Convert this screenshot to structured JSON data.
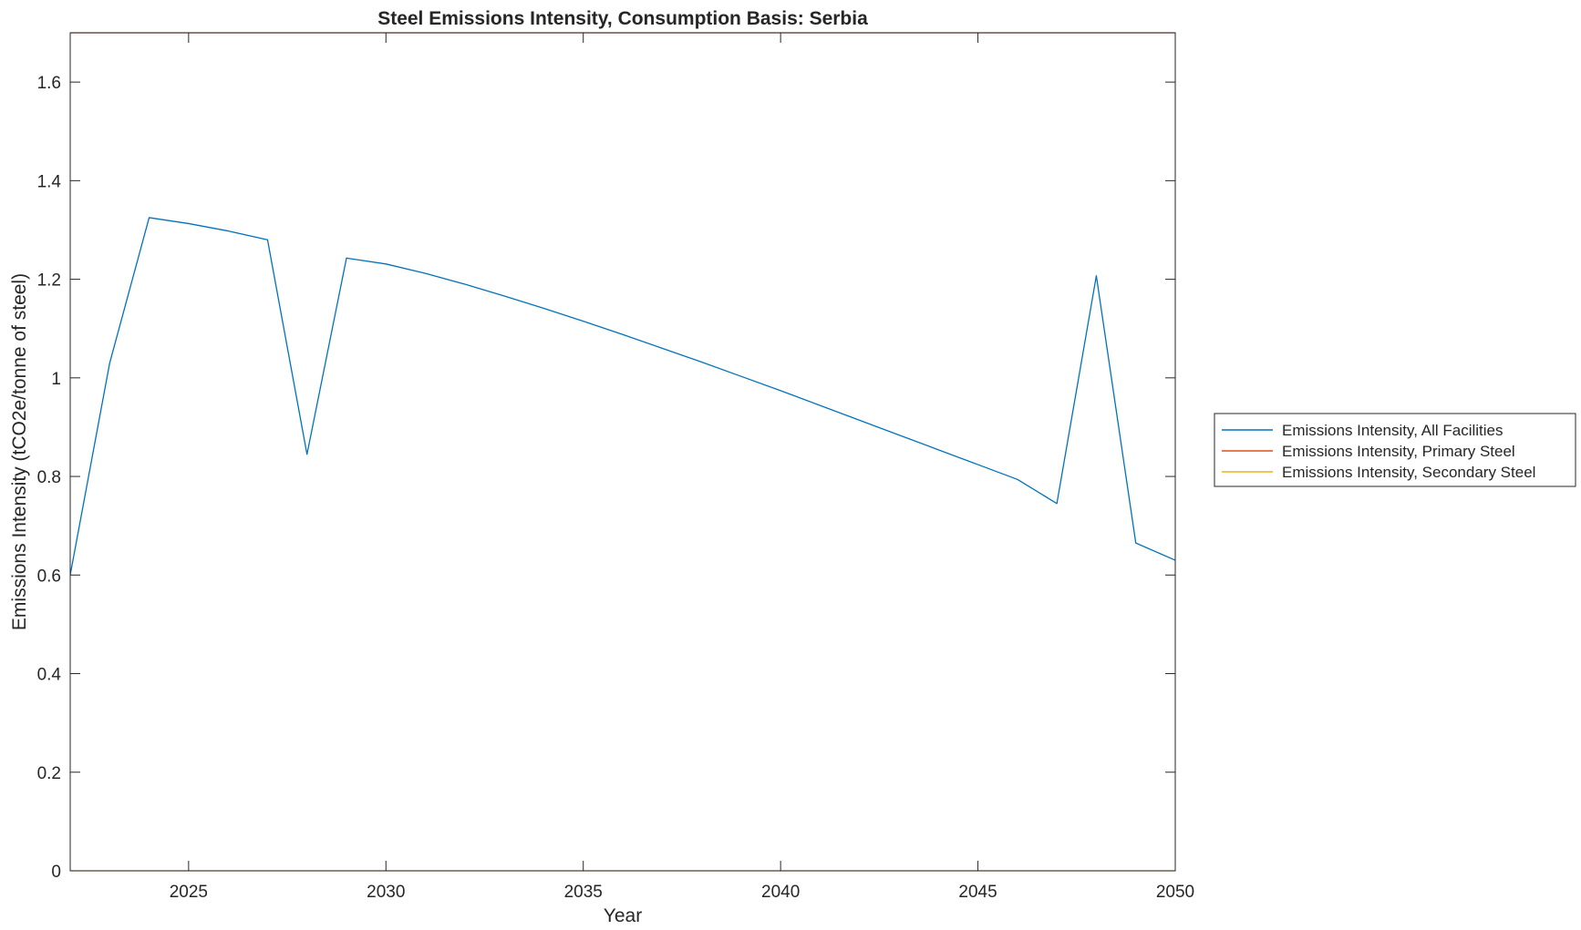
{
  "chart_data": {
    "type": "line",
    "title": "Steel Emissions Intensity, Consumption Basis: Serbia",
    "xlabel": "Year",
    "ylabel": "Emissions Intensity (tCO2e/tonne of steel)",
    "xlim": [
      2022,
      2050
    ],
    "ylim": [
      0,
      1.7
    ],
    "xticks": [
      2025,
      2030,
      2035,
      2040,
      2045,
      2050
    ],
    "yticks": [
      0,
      0.2,
      0.4,
      0.6,
      0.8,
      1,
      1.2,
      1.4,
      1.6
    ],
    "grid": false,
    "legend_position": "right",
    "x": [
      2022,
      2023,
      2024,
      2025,
      2026,
      2027,
      2028,
      2029,
      2030,
      2031,
      2032,
      2033,
      2034,
      2035,
      2036,
      2037,
      2038,
      2039,
      2040,
      2041,
      2042,
      2043,
      2044,
      2045,
      2046,
      2047,
      2048,
      2049,
      2050
    ],
    "series": [
      {
        "name": "Emissions Intensity, All Facilities",
        "color": "#0072BD",
        "values": [
          0.6,
          1.03,
          1.325,
          1.313,
          1.298,
          1.28,
          0.845,
          1.243,
          1.231,
          1.212,
          1.19,
          1.166,
          1.141,
          1.115,
          1.088,
          1.06,
          1.032,
          1.003,
          0.974,
          0.944,
          0.914,
          0.884,
          0.854,
          0.824,
          0.794,
          0.745,
          1.207,
          0.665,
          0.63
        ]
      },
      {
        "name": "Emissions Intensity, Primary Steel",
        "color": "#D95319",
        "values": [
          1.7,
          1.7,
          1.7,
          1.7,
          1.7,
          1.7,
          1.7,
          1.7,
          1.7,
          1.7,
          1.7,
          1.7,
          1.7,
          1.7,
          1.7,
          1.7,
          1.7,
          1.7,
          1.7,
          1.7,
          1.7,
          1.7,
          1.7,
          1.7,
          1.7,
          1.7,
          1.7,
          1.7,
          1.7
        ]
      },
      {
        "name": "Emissions Intensity, Secondary Steel",
        "color": "#EDB120",
        "values": [
          0,
          0,
          0,
          0,
          0,
          0,
          0,
          0,
          0,
          0,
          0,
          0,
          0,
          0,
          0,
          0,
          0,
          0,
          0,
          0,
          0,
          0,
          0,
          0,
          0,
          0,
          0,
          0,
          0
        ]
      }
    ]
  }
}
